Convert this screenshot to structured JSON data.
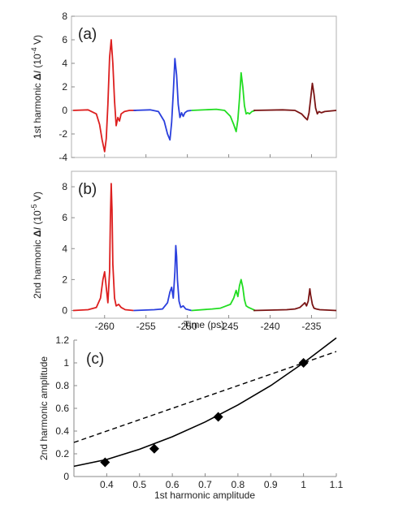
{
  "chart_data": [
    {
      "type": "line",
      "panel_label": "(a)",
      "ylabel": "1st harmonic ΔI  (10⁻⁴ V)",
      "ylabel_main": "1st harmonic ",
      "ylabel_delta": "Δ",
      "ylabel_italic": "I",
      "ylabel_unit_open": "  (10",
      "ylabel_exp": "-4",
      "ylabel_unit_close": " V)",
      "xlim": [
        -264,
        -232
      ],
      "ylim": [
        -4,
        8
      ],
      "yticks": [
        -4,
        -2,
        0,
        2,
        4,
        6,
        8
      ],
      "grid": false,
      "series": [
        {
          "color": "#dd1f1f",
          "x": [
            -263.8,
            -262,
            -261,
            -260.6,
            -260.3,
            -260.0,
            -259.8,
            -259.6,
            -259.4,
            -259.2,
            -259.0,
            -258.8,
            -258.6,
            -258.4,
            -258.2,
            -258.0,
            -257.6,
            -257.0,
            -256.2
          ],
          "y": [
            0,
            0.05,
            -0.3,
            -1.2,
            -2.5,
            -3.5,
            -2.4,
            0.5,
            4.5,
            6.0,
            4.0,
            0.8,
            -1.3,
            -0.6,
            -0.9,
            -0.3,
            -0.1,
            0,
            0
          ]
        },
        {
          "color": "#2a3fdd",
          "x": [
            -256.5,
            -254.5,
            -253.5,
            -252.8,
            -252.4,
            -252.1,
            -251.9,
            -251.7,
            -251.5,
            -251.3,
            -251.1,
            -250.9,
            -250.7,
            -250.5,
            -250.3,
            -250.0,
            -249.5
          ],
          "y": [
            0,
            0.05,
            -0.1,
            -0.9,
            -2.0,
            -2.5,
            -1.0,
            1.5,
            4.4,
            3.0,
            0.5,
            -0.6,
            -0.2,
            -0.5,
            -0.2,
            -0.05,
            0
          ]
        },
        {
          "color": "#22dd22",
          "x": [
            -249.5,
            -246.5,
            -245.5,
            -244.8,
            -244.4,
            -244.1,
            -243.9,
            -243.7,
            -243.5,
            -243.3,
            -243.1,
            -242.9,
            -242.7,
            -242.5,
            -242.2,
            -241.8
          ],
          "y": [
            0,
            0.1,
            0,
            -0.5,
            -1.2,
            -1.8,
            -0.8,
            1.0,
            3.2,
            2.0,
            0.4,
            -0.3,
            -0.2,
            -0.3,
            -0.1,
            0
          ]
        },
        {
          "color": "#7a1414",
          "x": [
            -242.0,
            -238.5,
            -237.0,
            -236.2,
            -235.8,
            -235.5,
            -235.3,
            -235.1,
            -234.9,
            -234.7,
            -234.5,
            -234.3,
            -234.1,
            -233.8,
            -233.4,
            -232.0
          ],
          "y": [
            0,
            0.05,
            0,
            -0.3,
            -0.6,
            -0.8,
            -0.2,
            1.0,
            2.3,
            1.4,
            0.2,
            -0.3,
            -0.1,
            -0.2,
            -0.1,
            0
          ]
        }
      ]
    },
    {
      "type": "line",
      "panel_label": "(b)",
      "ylabel": "2nd harmonic ΔI  (10⁻⁵ V)",
      "ylabel_main": "2nd harmonic ",
      "ylabel_delta": "Δ",
      "ylabel_italic": "I",
      "ylabel_unit_open": "  (10",
      "ylabel_exp": "-5",
      "ylabel_unit_close": " V)",
      "xlabel": "Time (ps)",
      "xlim": [
        -264,
        -232
      ],
      "xticks": [
        -260,
        -255,
        -250,
        -245,
        -240,
        -235
      ],
      "ylim": [
        -0.5,
        9
      ],
      "yticks": [
        0,
        2,
        4,
        6,
        8
      ],
      "ytick_labels": [
        "0",
        "2",
        "4",
        "6",
        "8"
      ],
      "grid": false,
      "series": [
        {
          "color": "#dd1f1f",
          "x": [
            -263.8,
            -262,
            -261,
            -260.5,
            -260.2,
            -260.0,
            -259.8,
            -259.6,
            -259.4,
            -259.3,
            -259.2,
            -259.1,
            -259.0,
            -258.8,
            -258.6,
            -258.3,
            -258.0,
            -257.5,
            -256.5
          ],
          "y": [
            0,
            0.05,
            0.2,
            0.8,
            2.0,
            2.5,
            1.5,
            0.5,
            2.5,
            6.0,
            8.2,
            6.5,
            3.0,
            0.8,
            0.3,
            0.4,
            0.2,
            0.05,
            0
          ]
        },
        {
          "color": "#2a3fdd",
          "x": [
            -256.5,
            -254,
            -253,
            -252.4,
            -252.1,
            -251.9,
            -251.7,
            -251.5,
            -251.4,
            -251.3,
            -251.2,
            -251.0,
            -250.8,
            -250.5,
            -250.2,
            -249.5
          ],
          "y": [
            0,
            0.05,
            0.1,
            0.5,
            1.2,
            1.5,
            0.8,
            2.5,
            4.2,
            3.5,
            2.0,
            0.6,
            0.2,
            0.3,
            0.1,
            0
          ]
        },
        {
          "color": "#22dd22",
          "x": [
            -249.5,
            -247,
            -246,
            -245.3,
            -244.8,
            -244.4,
            -244.1,
            -243.9,
            -243.7,
            -243.5,
            -243.3,
            -243.1,
            -242.9,
            -242.6,
            -242.2,
            -241.8
          ],
          "y": [
            0,
            0.1,
            0.15,
            0.3,
            0.4,
            0.8,
            1.3,
            0.9,
            1.6,
            2.0,
            1.5,
            0.7,
            0.3,
            0.2,
            0.1,
            0
          ]
        },
        {
          "color": "#7a1414",
          "x": [
            -242.0,
            -238,
            -237,
            -236.4,
            -236.0,
            -235.8,
            -235.6,
            -235.4,
            -235.3,
            -235.2,
            -235.1,
            -234.9,
            -234.7,
            -234.4,
            -234.0,
            -232.0
          ],
          "y": [
            0,
            0.05,
            0.1,
            0.2,
            0.4,
            0.5,
            0.3,
            0.6,
            1.0,
            1.4,
            1.0,
            0.4,
            0.15,
            0.1,
            0.05,
            0
          ]
        }
      ]
    },
    {
      "type": "scatter",
      "panel_label": "(c)",
      "xlabel": "1st harmonic amplitude",
      "ylabel": "2nd harmonic amplitude",
      "xlim": [
        0.3,
        1.1
      ],
      "ylim": [
        0,
        1.2
      ],
      "xticks": [
        0.4,
        0.5,
        0.6,
        0.7,
        0.8,
        0.9,
        1,
        1.1
      ],
      "xtick_labels": [
        "0.4",
        "0.5",
        "0.6",
        "0.7",
        "0.8",
        "0.9",
        "1",
        "1.1"
      ],
      "yticks": [
        0,
        0.2,
        0.4,
        0.6,
        0.8,
        1,
        1.2
      ],
      "ytick_labels": [
        "0",
        "0.2",
        "0.4",
        "0.6",
        "0.8",
        "1",
        "1.2"
      ],
      "grid": false,
      "points": {
        "x": [
          0.395,
          0.545,
          0.74,
          1.0
        ],
        "y": [
          0.125,
          0.245,
          0.525,
          1.0
        ],
        "marker": "diamond",
        "color": "#000000"
      },
      "fit_solid": {
        "style": "solid",
        "color": "#000000",
        "x": [
          0.3,
          0.4,
          0.5,
          0.6,
          0.7,
          0.8,
          0.9,
          1.0,
          1.1
        ],
        "y": [
          0.09,
          0.15,
          0.24,
          0.35,
          0.48,
          0.63,
          0.8,
          1.0,
          1.22
        ]
      },
      "fit_dashed": {
        "style": "dashed",
        "color": "#000000",
        "x": [
          0.3,
          1.1
        ],
        "y": [
          0.3,
          1.1
        ]
      }
    }
  ]
}
